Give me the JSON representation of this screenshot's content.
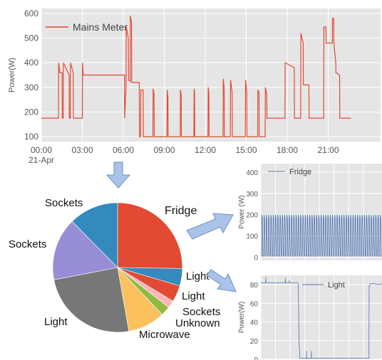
{
  "chart_data": [
    {
      "type": "line",
      "legend": [
        "Mains Meter"
      ],
      "ylabel": "Power(W)",
      "ylim": [
        80,
        620
      ],
      "yticks": [
        100,
        200,
        300,
        400,
        500,
        600
      ],
      "xlim": [
        0,
        1490
      ],
      "xticks": [
        0,
        180,
        360,
        540,
        720,
        900,
        1080,
        1260
      ],
      "xtick_labels": [
        "00:00",
        "03:00",
        "06:00",
        "09:00",
        "12:00",
        "15:00",
        "18:00",
        "21:00"
      ],
      "date_label": "21-Apr",
      "series": [
        {
          "name": "Mains Meter",
          "color": "#e24a33",
          "x": [
            0,
            75,
            76,
            80,
            81,
            91,
            92,
            96,
            97,
            122,
            123,
            127,
            128,
            140,
            141,
            180,
            181,
            184,
            185,
            365,
            366,
            372,
            373,
            382,
            383,
            390,
            391,
            396,
            397,
            430,
            431,
            436,
            437,
            447,
            448,
            490,
            491,
            495,
            496,
            552,
            553,
            556,
            557,
            610,
            611,
            614,
            615,
            670,
            671,
            673,
            674,
            732,
            733,
            736,
            737,
            798,
            799,
            803,
            804,
            830,
            831,
            838,
            839,
            896,
            897,
            902,
            903,
            950,
            951,
            956,
            957,
            983,
            984,
            990,
            991,
            1070,
            1071,
            1111,
            1112,
            1139,
            1140,
            1150,
            1151,
            1175,
            1176,
            1240,
            1241,
            1250,
            1251,
            1278,
            1279,
            1284,
            1285,
            1293,
            1294,
            1310,
            1311,
            1360
          ],
          "y": [
            175,
            175,
            400,
            370,
            360,
            360,
            175,
            175,
            400,
            350,
            175,
            175,
            400,
            360,
            175,
            175,
            400,
            355,
            350,
            350,
            175,
            300,
            545,
            500,
            330,
            325,
            590,
            565,
            320,
            320,
            100,
            100,
            290,
            290,
            100,
            100,
            295,
            275,
            100,
            100,
            290,
            260,
            100,
            100,
            290,
            270,
            100,
            100,
            295,
            275,
            100,
            100,
            300,
            275,
            100,
            100,
            335,
            300,
            100,
            100,
            330,
            280,
            100,
            100,
            330,
            280,
            100,
            100,
            290,
            280,
            100,
            100,
            300,
            270,
            175,
            175,
            400,
            380,
            175,
            175,
            520,
            480,
            310,
            310,
            175,
            175,
            545,
            545,
            480,
            480,
            580,
            580,
            480,
            400,
            360,
            350,
            175,
            175
          ]
        }
      ]
    },
    {
      "type": "pie",
      "labels": [
        "Fridge",
        "Light",
        "Light",
        "Sockets",
        "Unknown",
        "Microwave",
        "Light",
        "Sockets",
        "Sockets"
      ],
      "values": [
        24.5,
        4.2,
        4.0,
        1.8,
        2.3,
        9.0,
        24.0,
        15.2,
        12.0
      ],
      "colors": [
        "#e24a33",
        "#348abd",
        "#e24a33",
        "#ffb5b8",
        "#8eba42",
        "#fbc15e",
        "#777777",
        "#988ed5",
        "#348abd"
      ]
    },
    {
      "type": "line",
      "legend": [
        "Fridge"
      ],
      "ylabel": "Power (W)",
      "ylim": [
        -15,
        440
      ],
      "yticks": [
        0,
        100,
        200,
        300,
        400
      ],
      "xlim": [
        0,
        1490
      ],
      "series": [
        {
          "name": "Fridge",
          "color": "#4c72b0",
          "x": [
            0,
            8,
            12,
            18,
            24,
            34,
            40,
            46,
            52,
            62,
            68,
            74,
            80,
            90,
            96,
            102,
            108,
            118,
            124,
            130,
            136,
            146,
            152,
            158,
            164,
            174,
            180,
            186,
            192,
            202,
            208,
            214,
            220,
            230,
            236,
            242,
            248,
            258,
            264,
            270,
            276,
            286,
            292,
            298,
            304,
            314,
            320,
            326,
            332,
            342,
            348,
            354,
            360,
            370,
            376,
            382,
            388,
            398,
            404,
            410,
            416,
            426,
            432,
            438,
            444,
            454,
            460,
            466,
            472,
            482,
            488,
            494,
            500,
            510,
            516,
            522,
            528,
            538,
            544,
            550,
            556,
            566,
            572,
            578,
            584,
            594,
            600,
            606,
            612,
            622,
            628,
            634,
            640,
            650,
            656,
            662,
            668,
            678,
            684,
            690,
            696,
            706,
            712,
            718,
            724,
            734,
            740,
            746,
            752,
            762,
            768,
            774,
            780,
            790,
            796,
            802,
            808,
            818,
            824,
            830,
            836,
            846,
            852,
            858,
            864,
            874,
            880,
            886,
            892,
            902,
            908,
            914,
            920,
            930,
            936,
            942,
            948,
            958,
            964,
            970,
            976,
            986,
            992,
            998,
            1004,
            1014,
            1020,
            1026,
            1032,
            1042,
            1048,
            1054,
            1060,
            1070,
            1076,
            1082,
            1088,
            1098,
            1104,
            1110,
            1116,
            1126,
            1132,
            1138,
            1144,
            1154,
            1160,
            1166,
            1172,
            1182,
            1188,
            1194,
            1200,
            1210,
            1216,
            1222,
            1228,
            1238,
            1244,
            1250,
            1256,
            1266,
            1272,
            1278,
            1284,
            1294,
            1300,
            1306,
            1312,
            1322,
            1328,
            1334,
            1340,
            1350,
            1356,
            1362,
            1368,
            1378,
            1384,
            1390,
            1396,
            1406,
            1412,
            1418,
            1424,
            1434,
            1440,
            1446,
            1452,
            1462,
            1468,
            1474,
            1480,
            1490
          ],
          "y": [
            5,
            5,
            200,
            180,
            5,
            5,
            200,
            180,
            5,
            5,
            200,
            180,
            5,
            5,
            200,
            180,
            5,
            5,
            200,
            180,
            5,
            5,
            200,
            180,
            5,
            5,
            200,
            180,
            5,
            5,
            200,
            180,
            5,
            5,
            200,
            180,
            5,
            5,
            200,
            180,
            5,
            5,
            200,
            180,
            5,
            5,
            200,
            180,
            5,
            5,
            200,
            180,
            5,
            5,
            200,
            180,
            5,
            5,
            200,
            180,
            5,
            5,
            200,
            180,
            5,
            5,
            200,
            180,
            5,
            5,
            200,
            180,
            5,
            5,
            200,
            180,
            5,
            5,
            200,
            180,
            5,
            5,
            200,
            180,
            5,
            5,
            200,
            180,
            5,
            5,
            200,
            180,
            5,
            5,
            200,
            180,
            5,
            5,
            200,
            180,
            5,
            5,
            200,
            180,
            5,
            5,
            200,
            180,
            5,
            5,
            200,
            180,
            5,
            5,
            200,
            180,
            5,
            5,
            200,
            180,
            5,
            5,
            200,
            180,
            5,
            5,
            200,
            180,
            5,
            5,
            200,
            180,
            5,
            5,
            200,
            180,
            5,
            5,
            200,
            180,
            5,
            5,
            200,
            180,
            5,
            5,
            200,
            180,
            5,
            5,
            200,
            180,
            5,
            5,
            200,
            180,
            5,
            5,
            200,
            180,
            5,
            5,
            200,
            180,
            5,
            5,
            200,
            180,
            5,
            5,
            200,
            180,
            5,
            5,
            200,
            180,
            5,
            5,
            200,
            180,
            5,
            5,
            200,
            180,
            5,
            5,
            200,
            180,
            5,
            5,
            200,
            180,
            5,
            5,
            200,
            180,
            5,
            5,
            200,
            180,
            5,
            5,
            200,
            180,
            5,
            5,
            200,
            180,
            5,
            5,
            200,
            180,
            5,
            5
          ]
        }
      ]
    },
    {
      "type": "line",
      "legend": [
        "Light"
      ],
      "ylabel": "Power(W)",
      "ylim": [
        0,
        90
      ],
      "yticks": [
        0,
        20,
        40,
        60,
        80
      ],
      "xlim": [
        0,
        1490
      ],
      "series": [
        {
          "name": "Light",
          "color": "#4c72b0",
          "x": [
            0,
            60,
            61,
            63,
            64,
            300,
            301,
            303,
            304,
            350,
            351,
            352,
            353,
            450,
            451,
            460,
            470,
            480,
            490,
            500,
            560,
            561,
            562,
            563,
            620,
            621,
            622,
            623,
            700,
            800,
            900,
            1000,
            1100,
            1200,
            1330,
            1331,
            1340,
            1350,
            1400,
            1450,
            1490
          ],
          "y": [
            82,
            82,
            88,
            82,
            82,
            82,
            87,
            82,
            82,
            82,
            85,
            82,
            82,
            82,
            82,
            81,
            20,
            1,
            1,
            1,
            1,
            9,
            1,
            1,
            1,
            9,
            1,
            1,
            1,
            1,
            1,
            1,
            1,
            1,
            1,
            78,
            80,
            81,
            81,
            80,
            81
          ]
        }
      ]
    }
  ]
}
